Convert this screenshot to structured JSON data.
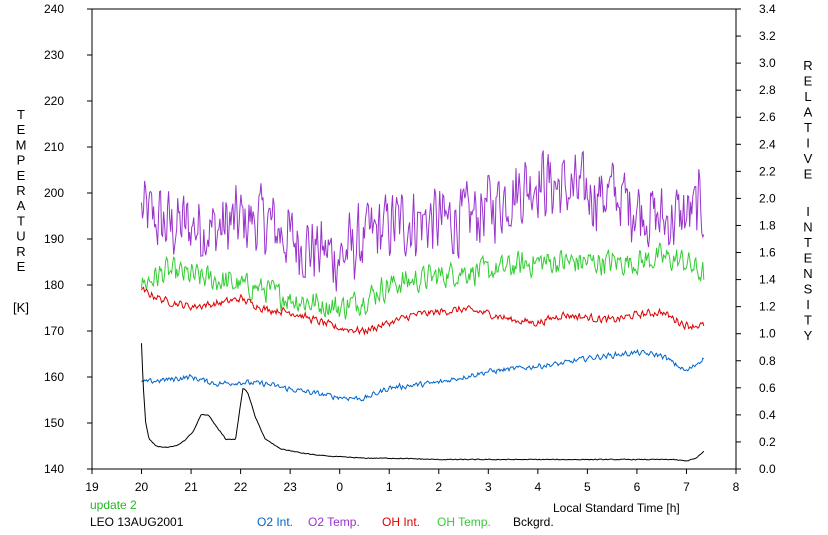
{
  "chart_data": {
    "type": "line",
    "title": "",
    "ylabel_left_letters": [
      "T",
      "E",
      "M",
      "P",
      "E",
      "R",
      "A",
      "T",
      "U",
      "R",
      "E"
    ],
    "ylabel_left_unit": "[K]",
    "ylabel_right_words": [
      [
        "R",
        "E",
        "L",
        "A",
        "T",
        "I",
        "V",
        "E"
      ],
      [
        "I",
        "N",
        "T",
        "E",
        "N",
        "S",
        "I",
        "T",
        "Y"
      ]
    ],
    "xlabel": "Local Standard Time [h]",
    "x_unit": "hours since 19:00 local standard time",
    "xlim": [
      0,
      13
    ],
    "ylim_left": [
      140,
      240
    ],
    "ylim_right": [
      0,
      3.4
    ],
    "x_ticks": [
      {
        "v": 0,
        "label": "19"
      },
      {
        "v": 1,
        "label": "20"
      },
      {
        "v": 2,
        "label": "21"
      },
      {
        "v": 3,
        "label": "22"
      },
      {
        "v": 4,
        "label": "23"
      },
      {
        "v": 5,
        "label": "0"
      },
      {
        "v": 6,
        "label": "1"
      },
      {
        "v": 7,
        "label": "2"
      },
      {
        "v": 8,
        "label": "3"
      },
      {
        "v": 9,
        "label": "4"
      },
      {
        "v": 10,
        "label": "5"
      },
      {
        "v": 11,
        "label": "6"
      },
      {
        "v": 12,
        "label": "7"
      },
      {
        "v": 13,
        "label": "8"
      }
    ],
    "y_left_ticks": [
      140,
      150,
      160,
      170,
      180,
      190,
      200,
      210,
      220,
      230,
      240
    ],
    "y_right_ticks": [
      "0.0",
      "0.2",
      "0.4",
      "0.6",
      "0.8",
      "1.0",
      "1.2",
      "1.4",
      "1.6",
      "1.8",
      "2.0",
      "2.2",
      "2.4",
      "2.6",
      "2.8",
      "3.0",
      "3.2",
      "3.4"
    ],
    "grid": false,
    "legend_position": "bottom",
    "series": [
      {
        "name": "O2 Temp.",
        "axis": "left",
        "color": "#9933cc",
        "noise": 9.5,
        "x": [
          1.0,
          1.5,
          2.0,
          2.5,
          3.0,
          3.5,
          4.0,
          4.5,
          5.0,
          5.5,
          6.0,
          6.5,
          7.0,
          7.5,
          8.0,
          8.5,
          9.0,
          9.5,
          10.0,
          10.5,
          11.0,
          11.5,
          12.0,
          12.35
        ],
        "y": [
          196,
          193,
          193,
          192,
          194,
          194,
          190,
          188,
          186,
          190,
          193,
          194,
          194,
          194,
          197,
          200,
          203,
          201,
          200,
          200,
          197,
          194,
          195,
          197
        ]
      },
      {
        "name": "OH Temp.",
        "axis": "left",
        "color": "#33cc33",
        "noise": 3.5,
        "x": [
          1.0,
          1.5,
          2.0,
          2.5,
          3.0,
          3.5,
          4.0,
          4.5,
          5.0,
          5.5,
          6.0,
          6.5,
          7.0,
          7.5,
          8.0,
          8.5,
          9.0,
          9.5,
          10.0,
          10.5,
          11.0,
          11.5,
          12.0,
          12.35
        ],
        "y": [
          180,
          183,
          182,
          181,
          180,
          179,
          177,
          176,
          175,
          177,
          180,
          181,
          182,
          183,
          183,
          184,
          185,
          185,
          185,
          185,
          185,
          186,
          185,
          182
        ]
      },
      {
        "name": "OH Int.",
        "axis": "right",
        "color": "#dd0000",
        "noise": 0.035,
        "x": [
          1.0,
          1.5,
          2.0,
          2.5,
          3.0,
          3.5,
          4.0,
          4.5,
          5.0,
          5.5,
          6.0,
          6.5,
          7.0,
          7.5,
          8.0,
          8.5,
          9.0,
          9.5,
          10.0,
          10.5,
          11.0,
          11.5,
          12.0,
          12.35
        ],
        "y": [
          1.32,
          1.24,
          1.2,
          1.22,
          1.26,
          1.18,
          1.16,
          1.1,
          1.04,
          1.02,
          1.08,
          1.14,
          1.16,
          1.18,
          1.15,
          1.1,
          1.08,
          1.14,
          1.12,
          1.1,
          1.14,
          1.16,
          1.06,
          1.06
        ]
      },
      {
        "name": "O2 Int.",
        "axis": "right",
        "color": "#0066cc",
        "noise": 0.025,
        "x": [
          1.0,
          1.5,
          2.0,
          2.5,
          3.0,
          3.5,
          4.0,
          4.5,
          5.0,
          5.5,
          6.0,
          6.5,
          7.0,
          7.5,
          8.0,
          8.5,
          9.0,
          9.5,
          10.0,
          10.5,
          11.0,
          11.5,
          12.0,
          12.35
        ],
        "y": [
          0.64,
          0.66,
          0.68,
          0.63,
          0.64,
          0.63,
          0.59,
          0.56,
          0.53,
          0.52,
          0.6,
          0.62,
          0.64,
          0.68,
          0.72,
          0.74,
          0.76,
          0.78,
          0.82,
          0.84,
          0.86,
          0.84,
          0.72,
          0.82
        ]
      },
      {
        "name": "Bckgrd.",
        "axis": "right",
        "color": "#000000",
        "noise": 0.004,
        "x": [
          1.0,
          1.03,
          1.08,
          1.15,
          1.3,
          1.5,
          1.7,
          1.9,
          2.05,
          2.2,
          2.35,
          2.5,
          2.7,
          2.9,
          3.0,
          3.05,
          3.15,
          3.3,
          3.5,
          3.8,
          4.2,
          4.6,
          5.0,
          5.5,
          6.0,
          7.0,
          8.0,
          9.0,
          10.0,
          11.0,
          11.6,
          11.7,
          12.0,
          12.2,
          12.35
        ],
        "y": [
          0.93,
          0.65,
          0.35,
          0.22,
          0.17,
          0.16,
          0.17,
          0.22,
          0.28,
          0.4,
          0.4,
          0.32,
          0.22,
          0.22,
          0.48,
          0.6,
          0.56,
          0.38,
          0.22,
          0.15,
          0.12,
          0.1,
          0.09,
          0.08,
          0.08,
          0.07,
          0.07,
          0.07,
          0.07,
          0.07,
          0.07,
          0.07,
          0.06,
          0.08,
          0.13
        ]
      }
    ]
  },
  "footer": {
    "update_text": "update 2",
    "station_text": "LEO 13AUG2001"
  }
}
